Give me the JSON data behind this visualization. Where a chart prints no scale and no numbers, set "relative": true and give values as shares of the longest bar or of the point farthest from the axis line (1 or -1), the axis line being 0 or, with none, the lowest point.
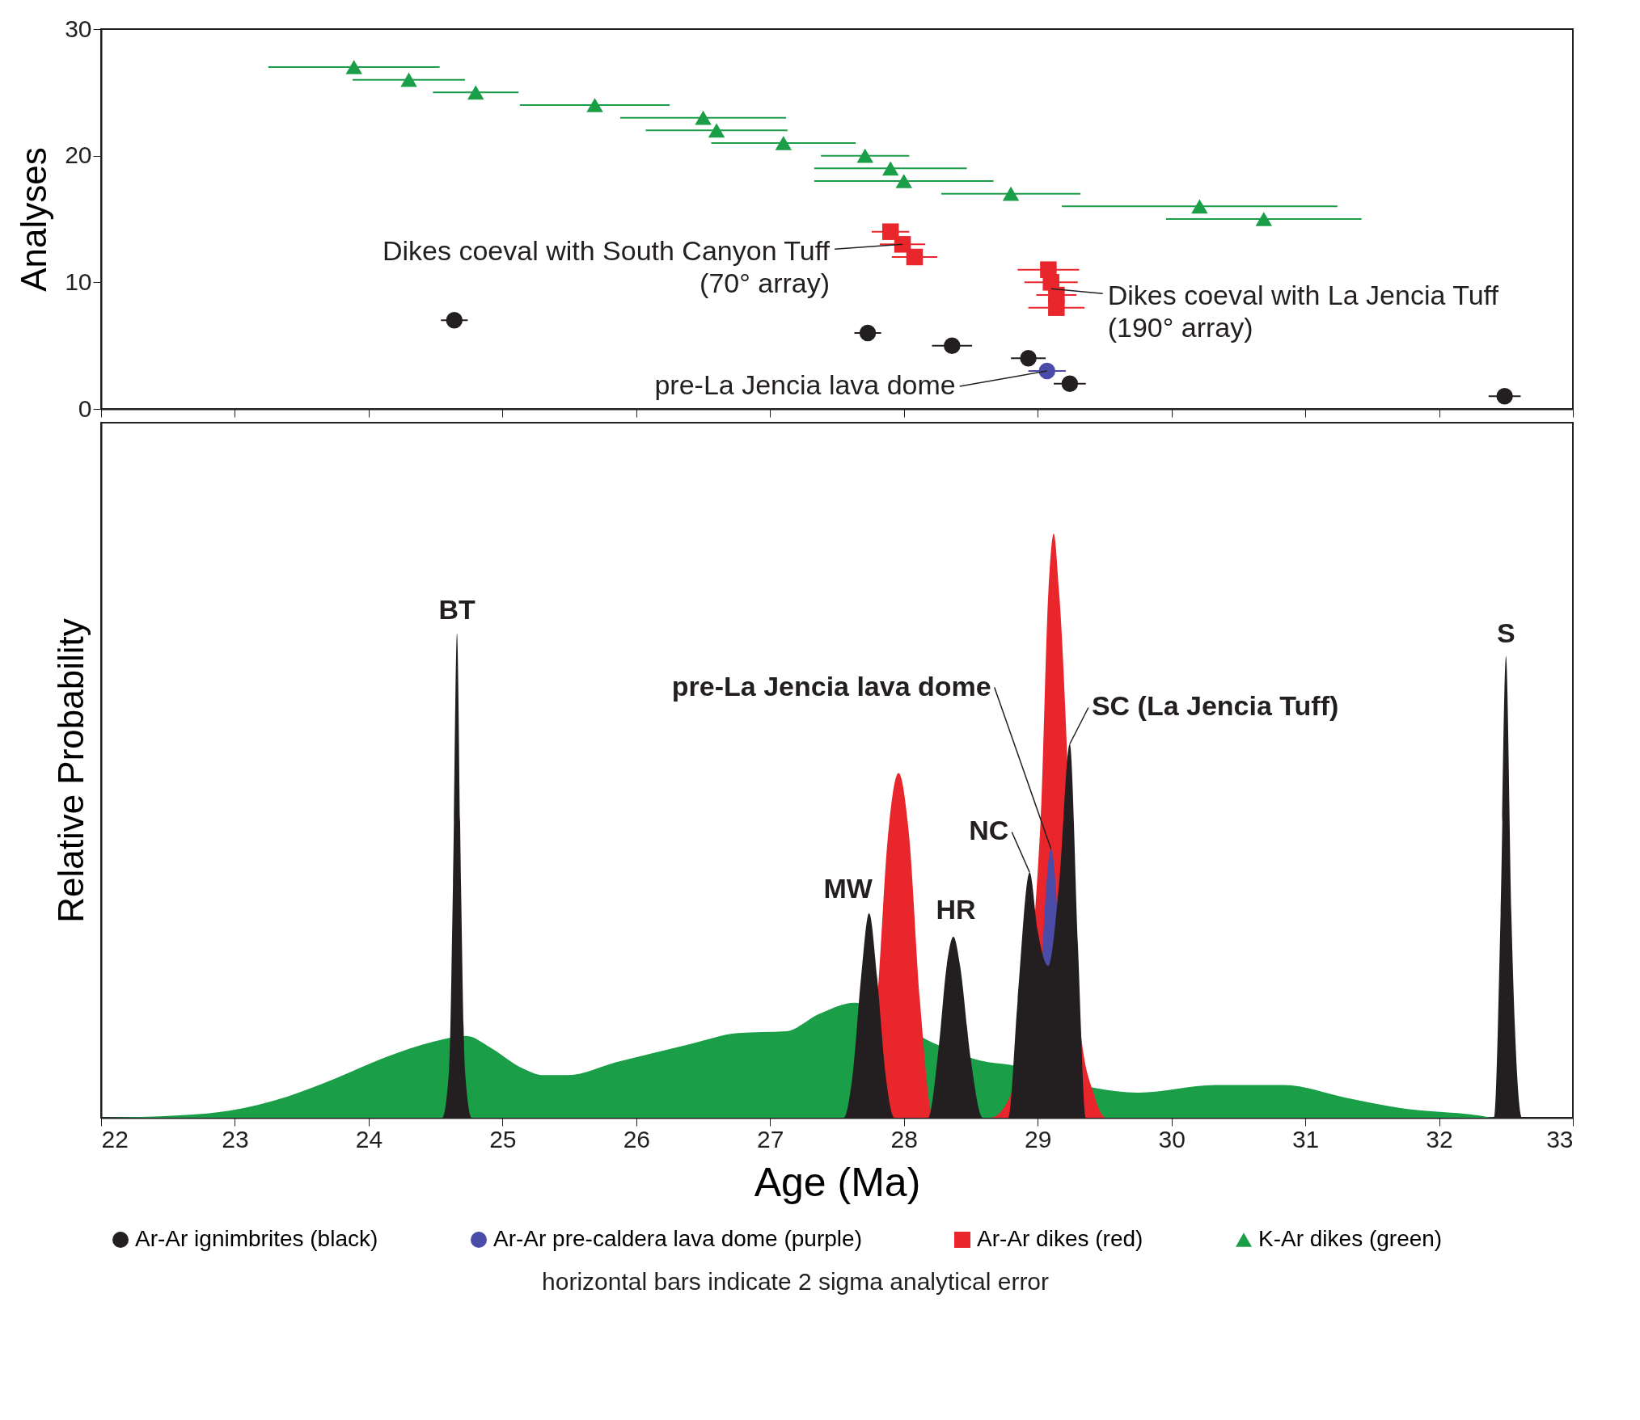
{
  "chart_data": [
    {
      "type": "scatter",
      "ylabel": "Analyses",
      "xlim": [
        22,
        33
      ],
      "xticks": [
        22,
        23,
        24,
        25,
        26,
        27,
        28,
        29,
        30,
        31,
        32,
        33
      ],
      "ylim": [
        0,
        30
      ],
      "yticks": [
        0,
        10,
        20,
        30
      ],
      "tick_labels": "y",
      "legend": "bottom",
      "series": [
        {
          "name": "Ar-Ar ignimbrites (black)",
          "color": "#231f20",
          "marker": "circle",
          "x": [
            32.49,
            29.24,
            28.93,
            28.36,
            27.73,
            24.64
          ],
          "values": [
            1,
            2,
            4,
            5,
            6,
            7
          ],
          "xerrors": [
            0.12,
            0.12,
            0.13,
            0.15,
            0.1,
            0.1
          ]
        },
        {
          "name": "Ar-Ar pre-caldera lava dome (purple)",
          "color": "#4b4ba8",
          "marker": "circle",
          "x": [
            29.07
          ],
          "values": [
            3
          ],
          "xerrors": [
            0.14
          ]
        },
        {
          "name": "Ar-Ar dikes (red)",
          "color": "#e8262b",
          "marker": "square",
          "x": [
            29.14,
            29.14,
            29.1,
            29.08,
            28.08,
            27.99,
            27.9
          ],
          "values": [
            8,
            9,
            10,
            11,
            12,
            13,
            14
          ],
          "xerrors": [
            0.21,
            0.15,
            0.2,
            0.23,
            0.17,
            0.17,
            0.14
          ]
        },
        {
          "name": "K-Ar dikes (green)",
          "color": "#1a9e48",
          "marker": "triangle",
          "x": [
            30.69,
            30.21,
            28.8,
            28.0,
            27.9,
            27.71,
            27.1,
            26.6,
            26.5,
            25.69,
            24.8,
            24.3,
            23.89
          ],
          "values": [
            15,
            16,
            17,
            18,
            19,
            20,
            21,
            22,
            23,
            24,
            25,
            26,
            27
          ],
          "xerrors": [
            0.73,
            1.03,
            0.52,
            0.67,
            0.57,
            0.33,
            0.54,
            0.53,
            0.62,
            0.56,
            0.32,
            0.42,
            0.64
          ]
        }
      ],
      "annotations": [
        {
          "text": "Dikes coeval with South Canyon Tuff\n(70° array)",
          "x": 27.99,
          "y": 13
        },
        {
          "text": "Dikes coeval with La Jencia Tuff\n(190° array)",
          "x": 29.1,
          "y": 9.5
        },
        {
          "text": "pre-La Jencia lava dome",
          "x": 29.07,
          "y": 3
        }
      ]
    },
    {
      "type": "area",
      "relative": true,
      "xlabel": "Age (Ma)",
      "ylabel": "Relative Probability",
      "xlim": [
        22,
        33
      ],
      "xticks": [
        22,
        23,
        24,
        25,
        26,
        27,
        28,
        29,
        30,
        31,
        32,
        33
      ],
      "series": [
        {
          "color": "#1a9e48",
          "x": [
            22.0,
            22.59,
            22.96,
            23.39,
            23.75,
            24.12,
            24.48,
            24.73,
            24.91,
            25.13,
            25.31,
            25.49,
            25.85,
            26.4,
            26.76,
            27.12,
            27.37,
            27.63,
            28.22,
            28.57,
            28.81,
            29.43,
            29.75,
            30.33,
            30.84,
            31.31,
            31.7,
            32.29,
            32.41,
            33.0
          ],
          "values": [
            0,
            0.004,
            0.012,
            0.036,
            0.067,
            0.103,
            0.13,
            0.14,
            0.12,
            0.087,
            0.073,
            0.073,
            0.095,
            0.126,
            0.145,
            0.148,
            0.178,
            0.197,
            0.128,
            0.098,
            0.09,
            0.051,
            0.043,
            0.056,
            0.056,
            0.034,
            0.017,
            0.004,
            0,
            0
          ]
        },
        {
          "color": "#e8262b",
          "x": [
            22.0,
            27.7,
            27.8,
            27.88,
            27.96,
            28.04,
            28.12,
            28.22,
            28.65,
            28.8,
            29.02,
            29.08,
            29.12,
            29.16,
            29.32,
            29.42,
            29.51,
            33.0
          ],
          "values": [
            0,
            0,
            0.2,
            0.48,
            0.59,
            0.48,
            0.2,
            0,
            0,
            0.04,
            0.5,
            0.9,
            1.0,
            0.9,
            0.15,
            0.04,
            0,
            0
          ]
        },
        {
          "color": "#4b4ba8",
          "x": [
            22.0,
            28.95,
            29.1,
            29.25,
            33.0
          ],
          "values": [
            0,
            0,
            0.46,
            0,
            0
          ]
        },
        {
          "color": "#231f20",
          "x": [
            22.0,
            24.55,
            24.6,
            24.63,
            24.66,
            24.69,
            24.72,
            24.77,
            27.55,
            27.62,
            27.68,
            27.74,
            27.8,
            27.86,
            27.93,
            28.18,
            28.26,
            28.32,
            28.37,
            28.42,
            28.5,
            28.59,
            28.78,
            28.85,
            28.94,
            29.0,
            29.08,
            29.16,
            29.24,
            29.3,
            29.36,
            32.41,
            32.46,
            32.5,
            32.54,
            32.62,
            33.0
          ],
          "values": [
            0,
            0,
            0.08,
            0.4,
            0.83,
            0.4,
            0.08,
            0,
            0,
            0.08,
            0.24,
            0.35,
            0.24,
            0.08,
            0,
            0,
            0.12,
            0.26,
            0.31,
            0.26,
            0.1,
            0,
            0,
            0.2,
            0.42,
            0.32,
            0.26,
            0.4,
            0.64,
            0.3,
            0,
            0,
            0.35,
            0.79,
            0.35,
            0,
            0
          ]
        }
      ],
      "annotations": [
        {
          "text": "BT",
          "x": 24.66,
          "y": 0.83
        },
        {
          "text": "MW",
          "x": 27.74,
          "y": 0.35
        },
        {
          "text": "HR",
          "x": 28.37,
          "y": 0.31
        },
        {
          "text": "NC",
          "x": 28.94,
          "y": 0.42
        },
        {
          "text": "pre-La Jencia lava dome",
          "x": 29.1,
          "y": 0.46
        },
        {
          "text": "SC (La Jencia Tuff)",
          "x": 29.24,
          "y": 0.64
        },
        {
          "text": "S",
          "x": 32.5,
          "y": 0.79
        },
        "horizontal bars indicate 2 sigma analytical error"
      ]
    }
  ]
}
